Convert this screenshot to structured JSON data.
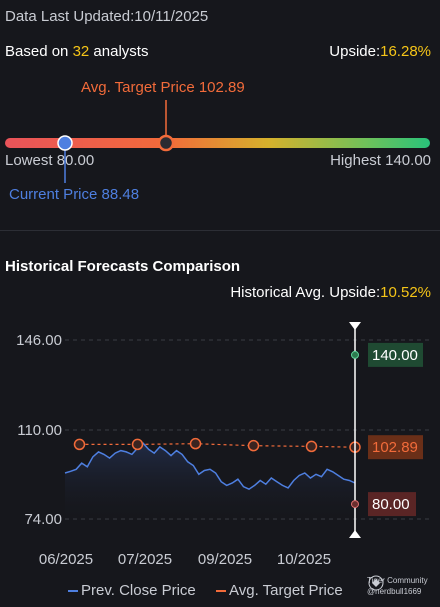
{
  "header": {
    "updated_prefix": "Data Last Updated:",
    "updated_date": "10/11/2025",
    "based_prefix": "Based on ",
    "analyst_count": "32",
    "based_suffix": " analysts",
    "upside_label": "Upside:",
    "upside_value": "16.28%"
  },
  "target": {
    "avg_label": "Avg. Target Price 102.89",
    "lowest_label": "Lowest 80.00",
    "highest_label": "Highest 140.00",
    "current_label": "Current Price 88.48",
    "lowest": 80.0,
    "highest": 140.0,
    "avg": 102.89,
    "current": 88.48
  },
  "historical": {
    "title": "Historical Forecasts Comparison",
    "upside_label": "Historical Avg. Upside:",
    "upside_value": "10.52%",
    "legend_prev": "Prev. Close Price",
    "legend_avg": "Avg. Target Price"
  },
  "colors": {
    "price_line": "#4e7fe0",
    "target_line": "#f26b3a",
    "high_box": "#1f4a32",
    "avg_box": "#6a2f18",
    "low_box": "#5a2525"
  },
  "chart_data": {
    "type": "line",
    "x_ticks": [
      "06/2025",
      "07/2025",
      "09/2025",
      "10/2025"
    ],
    "y_ticks": [
      "146.00",
      "110.00",
      "74.00"
    ],
    "ylim": [
      74,
      146
    ],
    "series": [
      {
        "name": "Prev. Close Price",
        "values": [
          92.5,
          93.2,
          94.0,
          96.5,
          95.0,
          99.0,
          101.0,
          100.0,
          98.5,
          100.5,
          101.5,
          101.0,
          100.0,
          102.5,
          104.5,
          102.0,
          100.5,
          103.0,
          101.5,
          99.5,
          101.5,
          100.0,
          97.0,
          95.5,
          92.0,
          93.5,
          94.0,
          92.5,
          89.0,
          87.5,
          88.5,
          90.0,
          87.0,
          86.0,
          87.5,
          89.5,
          88.0,
          90.5,
          89.0,
          87.5,
          86.5,
          89.5,
          91.5,
          92.5,
          90.5,
          92.0,
          91.0,
          94.0,
          93.0,
          91.5,
          90.0,
          89.5,
          88.48
        ]
      },
      {
        "name": "Avg. Target Price",
        "points": [
          [
            0.05,
            104.0
          ],
          [
            0.25,
            104.0
          ],
          [
            0.45,
            104.3
          ],
          [
            0.65,
            103.5
          ],
          [
            0.85,
            103.2
          ],
          [
            1.0,
            102.89
          ]
        ]
      }
    ],
    "markers": {
      "high": {
        "value": 140.0,
        "label": "140.00"
      },
      "avg": {
        "value": 102.89,
        "label": "102.89"
      },
      "low": {
        "value": 80.0,
        "label": "80.00"
      }
    }
  },
  "watermark": {
    "brand": "Tiger Community",
    "handle": "@nerdbull1669"
  }
}
